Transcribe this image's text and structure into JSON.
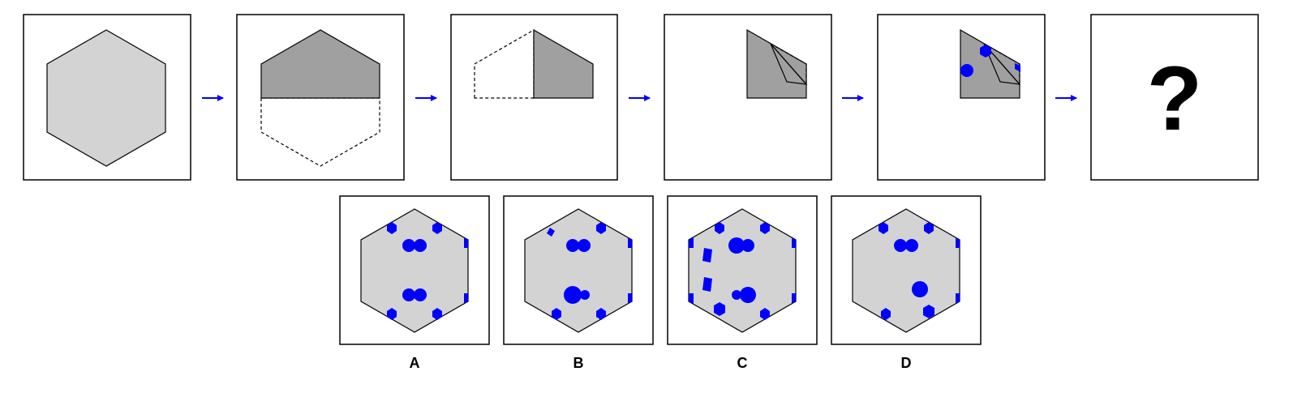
{
  "colors": {
    "hexagon_fill": "#d3d3d3",
    "folded_fill": "#a0a0a0",
    "dot_color": "#0000ff",
    "arrow_color": "#0000ff",
    "stroke": "#000000"
  },
  "sequence": {
    "arrow_icon": "right-arrow-icon",
    "steps": [
      {
        "name": "step-1-full-hexagon"
      },
      {
        "name": "step-2-fold-in-half"
      },
      {
        "name": "step-3-fold-in-half-again"
      },
      {
        "name": "step-4-fold-corner"
      },
      {
        "name": "step-5-punch-holes"
      },
      {
        "name": "step-6-unknown"
      }
    ],
    "question_text": "?"
  },
  "options": [
    {
      "label": "A"
    },
    {
      "label": "B"
    },
    {
      "label": "C"
    },
    {
      "label": "D"
    }
  ]
}
